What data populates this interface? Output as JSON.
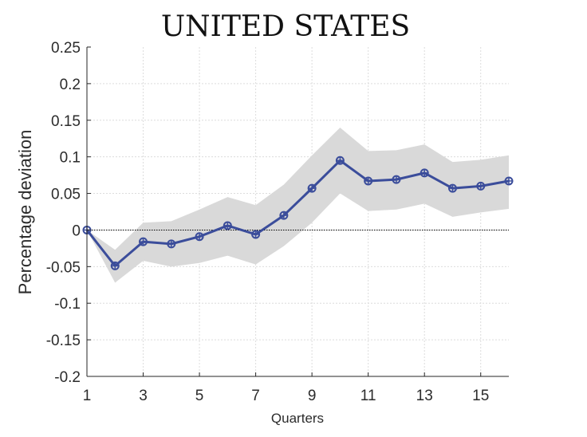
{
  "chart_data": {
    "type": "line",
    "title": "UNITED STATES",
    "xlabel": "Quarters",
    "ylabel": "Percentage deviation",
    "xlim": [
      1,
      16
    ],
    "ylim": [
      -0.2,
      0.25
    ],
    "xticks": [
      1,
      3,
      5,
      7,
      9,
      11,
      13,
      15
    ],
    "xtick_labels": [
      "1",
      "3",
      "5",
      "7",
      "9",
      "11",
      "13",
      "15"
    ],
    "yticks": [
      -0.2,
      -0.15,
      -0.1,
      -0.05,
      0,
      0.05,
      0.1,
      0.15,
      0.2,
      0.25
    ],
    "ytick_labels": [
      "-0.2",
      "-0.15",
      "-0.1",
      "-0.05",
      "0",
      "0.05",
      "0.1",
      "0.15",
      "0.2",
      "0.25"
    ],
    "grid": true,
    "x": [
      1,
      2,
      3,
      4,
      5,
      6,
      7,
      8,
      9,
      10,
      11,
      12,
      13,
      14,
      15,
      16
    ],
    "series": [
      {
        "values": [
          0,
          -0.049,
          -0.016,
          -0.019,
          -0.009,
          0.006,
          -0.006,
          0.02,
          0.057,
          0.095,
          0.067,
          0.069,
          0.078,
          0.057,
          0.06,
          0.067
        ],
        "color": "#3b4d9b"
      }
    ],
    "band": {
      "lower": [
        0,
        -0.072,
        -0.042,
        -0.05,
        -0.045,
        -0.035,
        -0.047,
        -0.022,
        0.01,
        0.05,
        0.026,
        0.028,
        0.036,
        0.018,
        0.024,
        0.029
      ],
      "upper": [
        0,
        -0.027,
        0.01,
        0.012,
        0.028,
        0.045,
        0.034,
        0.062,
        0.102,
        0.14,
        0.108,
        0.109,
        0.117,
        0.093,
        0.096,
        0.102
      ],
      "color": "#d9d9d9"
    },
    "zero_line": {
      "value": 0,
      "style": "dotted",
      "color": "#000000"
    },
    "colors": {
      "axis": "#262626",
      "grid": "#dcdcdc"
    }
  }
}
